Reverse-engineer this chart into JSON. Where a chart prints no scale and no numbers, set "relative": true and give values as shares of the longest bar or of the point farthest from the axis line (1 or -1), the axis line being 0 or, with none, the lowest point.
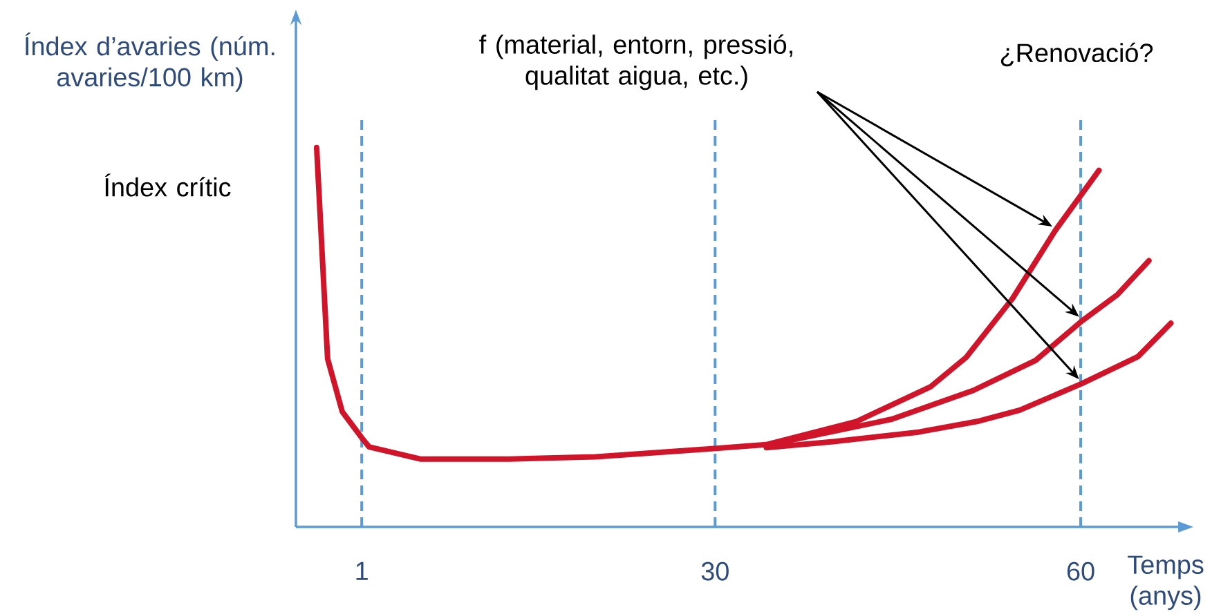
{
  "chart_data": {
    "type": "line",
    "relative": true,
    "ylabel": "Índex d’avaries (núm. avaries/100 km)",
    "xlabel": "Temps (anys)",
    "annotations": [
      "f (material, entorn, pressió, qualitat aigua, etc.)",
      "¿Renovació?",
      "Índex crític"
    ],
    "xlim": [
      -4.4,
      68
    ],
    "xticks": [
      1,
      30,
      60
    ],
    "ref_lines": [
      {
        "axis": "x",
        "value": 1,
        "color": "#5b9bd5",
        "line_style": "dashed"
      },
      {
        "axis": "x",
        "value": 30,
        "color": "#5b9bd5",
        "line_style": "dashed"
      },
      {
        "axis": "x",
        "value": 60,
        "color": "#5b9bd5",
        "line_style": "dashed"
      }
    ],
    "series": [
      {
        "color": "#d0142a",
        "x": [
          -2.7,
          -1.8,
          -0.6,
          1,
          1.6,
          5.8,
          13.1,
          20.2,
          27.5,
          34.2,
          41.6,
          47.7,
          50.6,
          54.4,
          57.9,
          61.5
        ],
        "values": [
          1.0,
          0.443,
          0.304,
          0.235,
          0.211,
          0.179,
          0.179,
          0.185,
          0.201,
          0.217,
          0.278,
          0.37,
          0.447,
          0.602,
          0.781,
          0.94
        ]
      },
      {
        "color": "#d0142a",
        "x": [
          34.2,
          44.5,
          51.2,
          56.3,
          60.1,
          63.0,
          65.6
        ],
        "values": [
          0.215,
          0.284,
          0.36,
          0.439,
          0.543,
          0.612,
          0.702
        ]
      },
      {
        "color": "#d0142a",
        "x": [
          34.2,
          39.7,
          46.7,
          51.5,
          55.0,
          60.1,
          64.7,
          67.4
        ],
        "values": [
          0.209,
          0.225,
          0.25,
          0.278,
          0.308,
          0.378,
          0.449,
          0.537
        ]
      }
    ],
    "marker": "none",
    "line_style": "solid"
  }
}
